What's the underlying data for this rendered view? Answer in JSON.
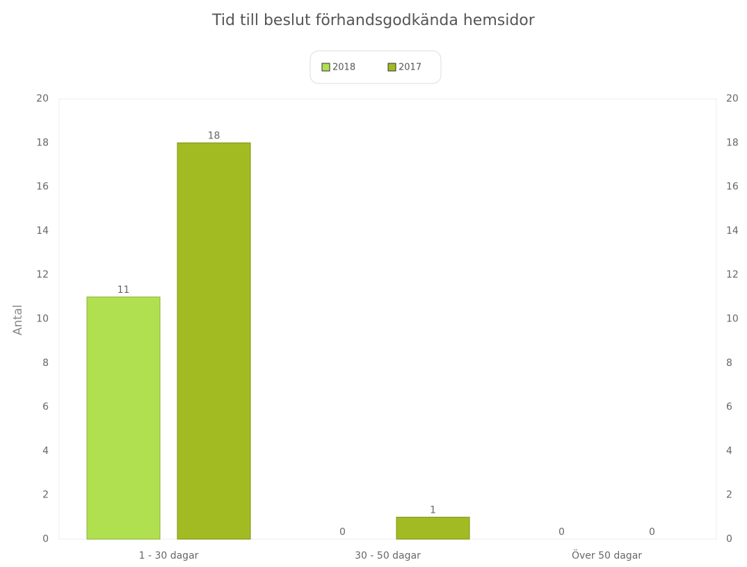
{
  "chart_data": {
    "type": "bar",
    "title": "Tid till beslut förhandsgodkända hemsidor",
    "y_label": "Antal",
    "categories": [
      "1 - 30 dagar",
      "30 - 50 dagar",
      "Över 50 dagar"
    ],
    "series": [
      {
        "name": "2018",
        "color": "#b0e04f",
        "values": [
          11,
          0,
          0
        ]
      },
      {
        "name": "2017",
        "color": "#a2bb22",
        "values": [
          18,
          1,
          0
        ]
      }
    ],
    "ylim": [
      0,
      20
    ],
    "yticks": [
      0,
      2,
      4,
      6,
      8,
      10,
      12,
      14,
      16,
      18,
      20
    ],
    "y2lim": [
      0,
      20
    ],
    "y2ticks": [
      0,
      2,
      4,
      6,
      8,
      10,
      12,
      14,
      16,
      18,
      20
    ],
    "legend": "top"
  }
}
